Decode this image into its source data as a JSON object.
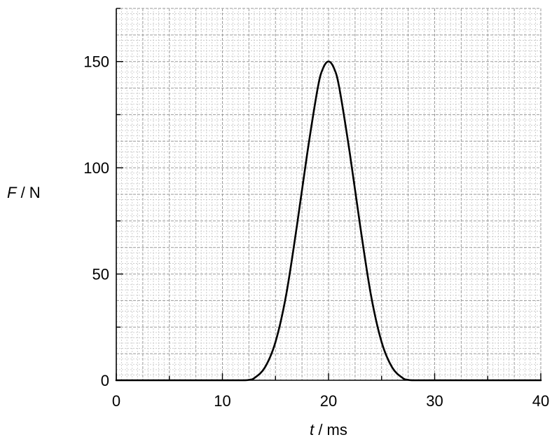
{
  "chart_data": {
    "type": "line",
    "title": "",
    "xlabel": {
      "symbol": "t",
      "unit": " / ms"
    },
    "ylabel": {
      "symbol": "F",
      "unit": " / N"
    },
    "xlim": [
      0,
      40
    ],
    "ylim": [
      0,
      175
    ],
    "xticks": [
      0,
      10,
      20,
      30,
      40
    ],
    "yticks": [
      0,
      50,
      100,
      150
    ],
    "grid": true,
    "legend": "none",
    "series": [
      {
        "color": "#000000",
        "x": [
          0,
          10,
          12,
          12.5,
          13,
          14,
          15,
          16,
          17,
          18,
          19,
          19.5,
          20,
          20.5,
          21,
          22,
          23,
          24,
          25,
          26,
          27,
          27.5,
          28,
          30,
          40
        ],
        "y": [
          0,
          0,
          0,
          0.2,
          1,
          6,
          18,
          40,
          72,
          107,
          138,
          147,
          150,
          147,
          138,
          107,
          72,
          40,
          18,
          6,
          1,
          0.2,
          0,
          0,
          0
        ]
      }
    ]
  }
}
